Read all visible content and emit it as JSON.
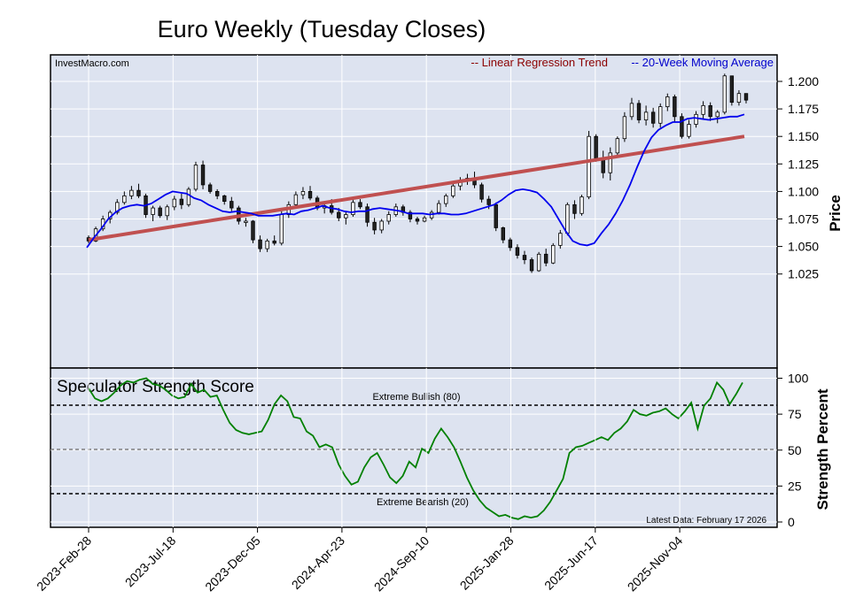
{
  "chart_data": [
    {
      "type": "candlestick",
      "title": "Euro Weekly (Tuesday Closes)",
      "source": "InvestMacro.com",
      "ylabel": "Price",
      "ylim": [
        1.015,
        1.215
      ],
      "yticks": [
        "1.200",
        "1.175",
        "1.150",
        "1.125",
        "1.100",
        "1.075",
        "1.050",
        "1.025"
      ],
      "x_tick_labels": [
        "2023-Feb-28",
        "2023-Jul-18",
        "2023-Dec-05",
        "2024-Apr-23",
        "2024-Sep-10",
        "2025-Jan-28",
        "2025-Jun-17",
        "2025-Nov-04"
      ],
      "legend": [
        {
          "label": "-- Linear Regression Trend",
          "color": "#8b0000"
        },
        {
          "label": "-- 20-Week Moving Average",
          "color": "#0000cc"
        }
      ],
      "series": [
        {
          "name": "Linear Regression Trend",
          "start": 1.056,
          "end": 1.15
        },
        {
          "name": "20-Week Moving Average",
          "values": [
            1.049,
            1.058,
            1.066,
            1.075,
            1.081,
            1.085,
            1.087,
            1.088,
            1.087,
            1.089,
            1.093,
            1.097,
            1.1,
            1.099,
            1.098,
            1.094,
            1.092,
            1.088,
            1.085,
            1.082,
            1.081,
            1.082,
            1.081,
            1.08,
            1.078,
            1.078,
            1.078,
            1.079,
            1.08,
            1.079,
            1.082,
            1.083,
            1.085,
            1.087,
            1.085,
            1.084,
            1.082,
            1.081,
            1.082,
            1.082,
            1.084,
            1.085,
            1.084,
            1.083,
            1.082,
            1.08,
            1.08,
            1.08,
            1.079,
            1.08,
            1.08,
            1.079,
            1.079,
            1.08,
            1.082,
            1.084,
            1.086,
            1.088,
            1.092,
            1.097,
            1.101,
            1.102,
            1.101,
            1.099,
            1.093,
            1.086,
            1.075,
            1.064,
            1.055,
            1.052,
            1.051,
            1.053,
            1.062,
            1.07,
            1.08,
            1.092,
            1.106,
            1.122,
            1.137,
            1.149,
            1.156,
            1.16,
            1.163,
            1.163,
            1.166,
            1.167,
            1.166,
            1.165,
            1.166,
            1.167,
            1.168,
            1.168,
            1.17
          ]
        }
      ],
      "candles_ohlc": [
        [
          1.058,
          1.06,
          1.053,
          1.055
        ],
        [
          1.055,
          1.068,
          1.054,
          1.066
        ],
        [
          1.066,
          1.078,
          1.064,
          1.075
        ],
        [
          1.075,
          1.083,
          1.071,
          1.081
        ],
        [
          1.081,
          1.093,
          1.079,
          1.09
        ],
        [
          1.09,
          1.1,
          1.088,
          1.096
        ],
        [
          1.096,
          1.105,
          1.093,
          1.101
        ],
        [
          1.101,
          1.107,
          1.094,
          1.096
        ],
        [
          1.096,
          1.098,
          1.076,
          1.079
        ],
        [
          1.079,
          1.087,
          1.073,
          1.085
        ],
        [
          1.085,
          1.087,
          1.076,
          1.078
        ],
        [
          1.078,
          1.088,
          1.074,
          1.086
        ],
        [
          1.086,
          1.096,
          1.083,
          1.093
        ],
        [
          1.093,
          1.098,
          1.084,
          1.088
        ],
        [
          1.088,
          1.104,
          1.086,
          1.102
        ],
        [
          1.102,
          1.127,
          1.1,
          1.124
        ],
        [
          1.124,
          1.128,
          1.102,
          1.106
        ],
        [
          1.106,
          1.108,
          1.098,
          1.1
        ],
        [
          1.1,
          1.102,
          1.093,
          1.096
        ],
        [
          1.096,
          1.097,
          1.088,
          1.091
        ],
        [
          1.091,
          1.095,
          1.082,
          1.085
        ],
        [
          1.085,
          1.087,
          1.07,
          1.073
        ],
        [
          1.073,
          1.076,
          1.068,
          1.073
        ],
        [
          1.073,
          1.074,
          1.053,
          1.056
        ],
        [
          1.056,
          1.06,
          1.045,
          1.048
        ],
        [
          1.048,
          1.057,
          1.045,
          1.055
        ],
        [
          1.055,
          1.06,
          1.051,
          1.053
        ],
        [
          1.053,
          1.082,
          1.051,
          1.079
        ],
        [
          1.079,
          1.091,
          1.076,
          1.088
        ],
        [
          1.088,
          1.1,
          1.085,
          1.097
        ],
        [
          1.097,
          1.104,
          1.093,
          1.1
        ],
        [
          1.1,
          1.105,
          1.092,
          1.094
        ],
        [
          1.094,
          1.096,
          1.083,
          1.085
        ],
        [
          1.085,
          1.09,
          1.08,
          1.087
        ],
        [
          1.087,
          1.093,
          1.079,
          1.081
        ],
        [
          1.081,
          1.085,
          1.073,
          1.076
        ],
        [
          1.076,
          1.082,
          1.07,
          1.079
        ],
        [
          1.079,
          1.093,
          1.077,
          1.09
        ],
        [
          1.09,
          1.093,
          1.084,
          1.086
        ],
        [
          1.086,
          1.089,
          1.068,
          1.072
        ],
        [
          1.072,
          1.076,
          1.061,
          1.065
        ],
        [
          1.065,
          1.075,
          1.062,
          1.073
        ],
        [
          1.073,
          1.082,
          1.07,
          1.079
        ],
        [
          1.079,
          1.089,
          1.077,
          1.086
        ],
        [
          1.086,
          1.088,
          1.078,
          1.081
        ],
        [
          1.081,
          1.083,
          1.072,
          1.075
        ],
        [
          1.075,
          1.077,
          1.07,
          1.073
        ],
        [
          1.073,
          1.078,
          1.072,
          1.076
        ],
        [
          1.076,
          1.083,
          1.074,
          1.081
        ],
        [
          1.081,
          1.092,
          1.079,
          1.089
        ],
        [
          1.089,
          1.098,
          1.086,
          1.096
        ],
        [
          1.096,
          1.108,
          1.094,
          1.105
        ],
        [
          1.105,
          1.113,
          1.101,
          1.11
        ],
        [
          1.11,
          1.116,
          1.106,
          1.112
        ],
        [
          1.112,
          1.118,
          1.103,
          1.106
        ],
        [
          1.106,
          1.108,
          1.09,
          1.093
        ],
        [
          1.093,
          1.096,
          1.084,
          1.088
        ],
        [
          1.088,
          1.09,
          1.064,
          1.067
        ],
        [
          1.067,
          1.068,
          1.053,
          1.056
        ],
        [
          1.056,
          1.058,
          1.046,
          1.049
        ],
        [
          1.049,
          1.052,
          1.039,
          1.042
        ],
        [
          1.042,
          1.046,
          1.034,
          1.038
        ],
        [
          1.038,
          1.04,
          1.026,
          1.028
        ],
        [
          1.028,
          1.045,
          1.027,
          1.043
        ],
        [
          1.043,
          1.048,
          1.032,
          1.035
        ],
        [
          1.035,
          1.053,
          1.034,
          1.051
        ],
        [
          1.051,
          1.065,
          1.048,
          1.062
        ],
        [
          1.062,
          1.09,
          1.06,
          1.088
        ],
        [
          1.088,
          1.092,
          1.075,
          1.08
        ],
        [
          1.08,
          1.097,
          1.078,
          1.095
        ],
        [
          1.095,
          1.155,
          1.093,
          1.15
        ],
        [
          1.15,
          1.152,
          1.127,
          1.13
        ],
        [
          1.13,
          1.137,
          1.112,
          1.117
        ],
        [
          1.117,
          1.14,
          1.11,
          1.135
        ],
        [
          1.135,
          1.15,
          1.132,
          1.148
        ],
        [
          1.148,
          1.172,
          1.145,
          1.168
        ],
        [
          1.168,
          1.185,
          1.165,
          1.18
        ],
        [
          1.18,
          1.183,
          1.162,
          1.165
        ],
        [
          1.165,
          1.178,
          1.16,
          1.172
        ],
        [
          1.172,
          1.176,
          1.158,
          1.162
        ],
        [
          1.162,
          1.18,
          1.158,
          1.177
        ],
        [
          1.177,
          1.189,
          1.173,
          1.186
        ],
        [
          1.186,
          1.188,
          1.163,
          1.168
        ],
        [
          1.168,
          1.171,
          1.148,
          1.15
        ],
        [
          1.15,
          1.165,
          1.148,
          1.161
        ],
        [
          1.161,
          1.173,
          1.158,
          1.17
        ],
        [
          1.17,
          1.182,
          1.166,
          1.178
        ],
        [
          1.178,
          1.181,
          1.164,
          1.168
        ],
        [
          1.168,
          1.174,
          1.162,
          1.172
        ],
        [
          1.172,
          1.207,
          1.17,
          1.205
        ],
        [
          1.205,
          1.191,
          1.178,
          1.181
        ],
        [
          1.181,
          1.192,
          1.178,
          1.189
        ],
        [
          1.189,
          1.186,
          1.18,
          1.183
        ]
      ]
    },
    {
      "type": "line",
      "title": "Speculator Strength Score",
      "ylabel": "Strength Percent",
      "ylim": [
        0,
        100
      ],
      "yticks": [
        "100",
        "75",
        "50",
        "25",
        "0"
      ],
      "reference_lines": [
        {
          "label": "Extreme Bullish (80)",
          "value": 80,
          "style": "dashed",
          "color": "#000000"
        },
        {
          "label": "",
          "value": 50,
          "style": "dashed",
          "color": "#666666"
        },
        {
          "label": "Extreme Bearish (20)",
          "value": 20,
          "style": "dashed",
          "color": "#000000"
        }
      ],
      "footnote": "Latest Data: February 17 2026",
      "series": [
        {
          "name": "Speculator Strength Score",
          "color": "#008000",
          "values": [
            93,
            86,
            84,
            86,
            90,
            95,
            98,
            97,
            99,
            100,
            96,
            95,
            92,
            88,
            86,
            87,
            96,
            90,
            92,
            87,
            88,
            78,
            69,
            64,
            62,
            61,
            62,
            63,
            71,
            82,
            88,
            84,
            73,
            72,
            63,
            60,
            52,
            54,
            52,
            40,
            32,
            26,
            28,
            38,
            45,
            48,
            40,
            31,
            27,
            32,
            42,
            38,
            51,
            48,
            58,
            65,
            59,
            52,
            42,
            31,
            22,
            15,
            10,
            7,
            4,
            5,
            3,
            2,
            4,
            3,
            4,
            8,
            14,
            22,
            30,
            48,
            52,
            53,
            55,
            57,
            59,
            57,
            62,
            65,
            70,
            78,
            75,
            74,
            76,
            77,
            79,
            75,
            72,
            77,
            83,
            65,
            81,
            86,
            97,
            92,
            82,
            89,
            97
          ]
        }
      ]
    }
  ]
}
